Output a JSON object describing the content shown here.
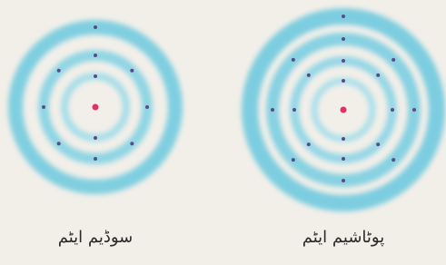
{
  "labels": {
    "sodium": "سوڈیم ایٹم",
    "potassium": "پوٹاشیم ایٹم"
  }
}
